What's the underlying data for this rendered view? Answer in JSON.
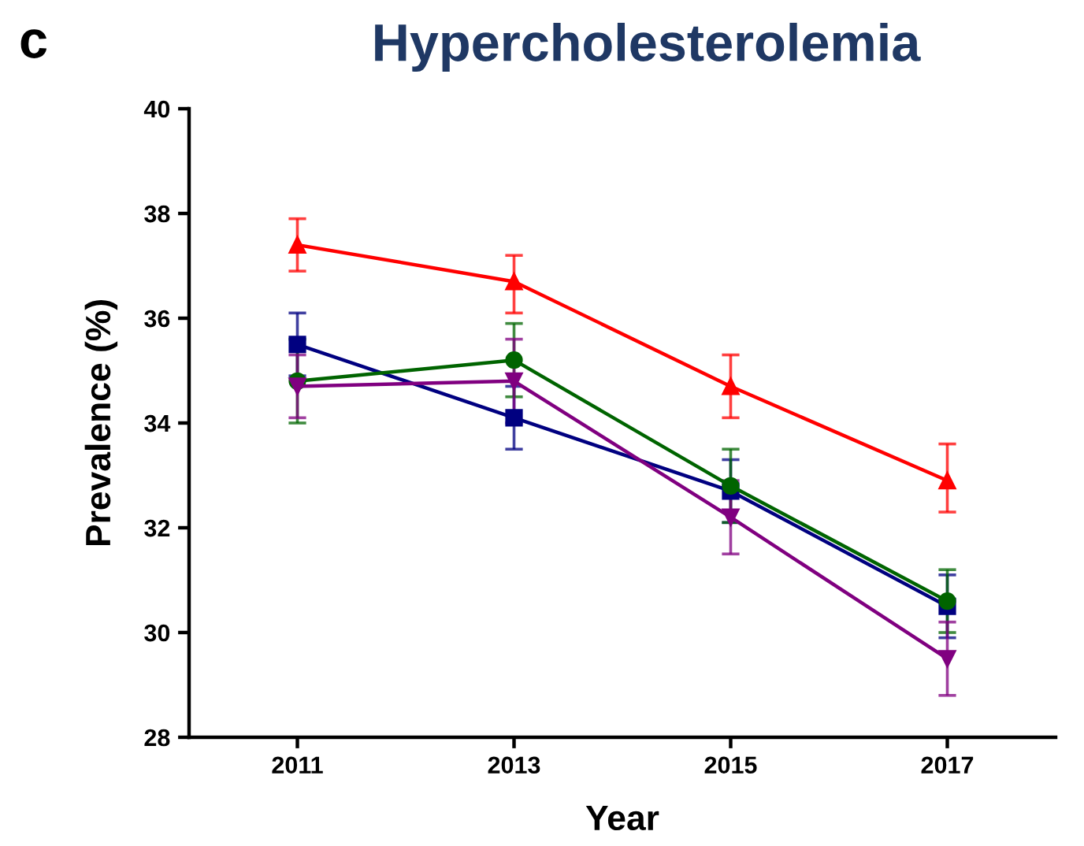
{
  "chart_data": {
    "type": "line",
    "title": "Hypercholesterolemia",
    "xlabel": "Year",
    "ylabel": "Prevalence (%)",
    "annotations": [
      "c"
    ],
    "x": [
      2011,
      2013,
      2015,
      2017
    ],
    "xlim": [
      2010,
      2018
    ],
    "xticks": [
      2011,
      2013,
      2015,
      2017
    ],
    "ylim": [
      28,
      40
    ],
    "yticks": [
      28,
      30,
      32,
      34,
      36,
      38,
      40
    ],
    "grid": false,
    "series": [
      {
        "color": "#ff0000",
        "marker": "triangle",
        "values": [
          37.4,
          36.7,
          34.7,
          32.9
        ],
        "errors": [
          0.5,
          [
            36.1,
            37.2
          ],
          0.6,
          [
            32.3,
            33.6
          ]
        ]
      },
      {
        "color": "#000080",
        "marker": "square",
        "values": [
          35.5,
          34.1,
          32.7,
          30.5
        ],
        "errors": [
          0.6,
          0.6,
          0.6,
          0.6
        ]
      },
      {
        "color": "#006400",
        "marker": "circle",
        "values": [
          34.8,
          35.2,
          32.8,
          30.6
        ],
        "errors": [
          0.8,
          0.7,
          0.7,
          0.6
        ]
      },
      {
        "color": "#800080",
        "marker": "triangle_down",
        "values": [
          34.7,
          34.8,
          32.2,
          29.5
        ],
        "errors": [
          0.6,
          0.8,
          0.7,
          0.7
        ]
      }
    ]
  }
}
